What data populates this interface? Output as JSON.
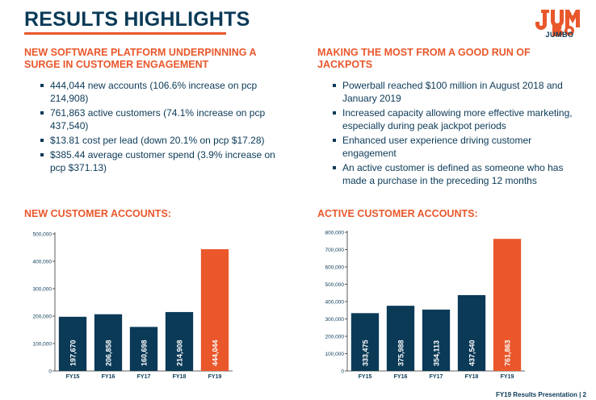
{
  "header": {
    "title": "RESULTS HIGHLIGHTS",
    "logo_text": "JUMBO"
  },
  "left": {
    "heading": "NEW SOFTWARE PLATFORM UNDERPINNING A SURGE IN CUSTOMER ENGAGEMENT",
    "bullets": [
      "444,044 new accounts (106.6% increase on pcp 214,908)",
      "761,863 active customers (74.1% increase on pcp 437,540)",
      "$13.81 cost per lead (down 20.1% on pcp $17.28)",
      "$385.44 average customer spend (3.9% increase on pcp $371.13)"
    ],
    "chart_title": "NEW CUSTOMER ACCOUNTS:"
  },
  "right": {
    "heading": "MAKING THE MOST FROM A GOOD RUN OF JACKPOTS",
    "bullets": [
      "Powerball reached $100 million in August 2018 and January 2019",
      "Increased capacity allowing more effective marketing, especially during peak jackpot periods",
      "Enhanced user experience driving customer engagement",
      "An active customer is defined as someone who has made a purchase in the preceding 12 months"
    ],
    "chart_title": "ACTIVE CUSTOMER ACCOUNTS:"
  },
  "footer": {
    "text": "FY19 Results Presentation | 2"
  },
  "colors": {
    "navy": "#0b3a57",
    "orange": "#e9572b"
  },
  "chart_data": [
    {
      "type": "bar",
      "title": "NEW CUSTOMER ACCOUNTS:",
      "categories": [
        "FY15",
        "FY16",
        "FY17",
        "FY18",
        "FY19"
      ],
      "values": [
        197670,
        206858,
        160698,
        214908,
        444044
      ],
      "value_labels": [
        "197,670",
        "206,858",
        "160,698",
        "214,908",
        "444,044"
      ],
      "highlight_index": 4,
      "ylim": [
        0,
        500000
      ],
      "yticks": [
        0,
        100000,
        200000,
        300000,
        400000,
        500000
      ],
      "ytick_labels": [
        "0",
        "100,000",
        "200,000",
        "300,000",
        "400,000",
        "500,000"
      ],
      "grid": false
    },
    {
      "type": "bar",
      "title": "ACTIVE CUSTOMER ACCOUNTS:",
      "categories": [
        "FY15",
        "FY16",
        "FY17",
        "FY18",
        "FY19"
      ],
      "values": [
        333475,
        375988,
        354113,
        437540,
        761863
      ],
      "value_labels": [
        "333,475",
        "375,988",
        "354,113",
        "437,540",
        "761,863"
      ],
      "highlight_index": 4,
      "ylim": [
        0,
        800000
      ],
      "yticks": [
        0,
        100000,
        200000,
        300000,
        400000,
        500000,
        600000,
        700000,
        800000
      ],
      "ytick_labels": [
        "0",
        "100,000",
        "200,000",
        "300,000",
        "400,000",
        "500,000",
        "600,000",
        "700,000",
        "800,000"
      ],
      "grid": false
    }
  ]
}
